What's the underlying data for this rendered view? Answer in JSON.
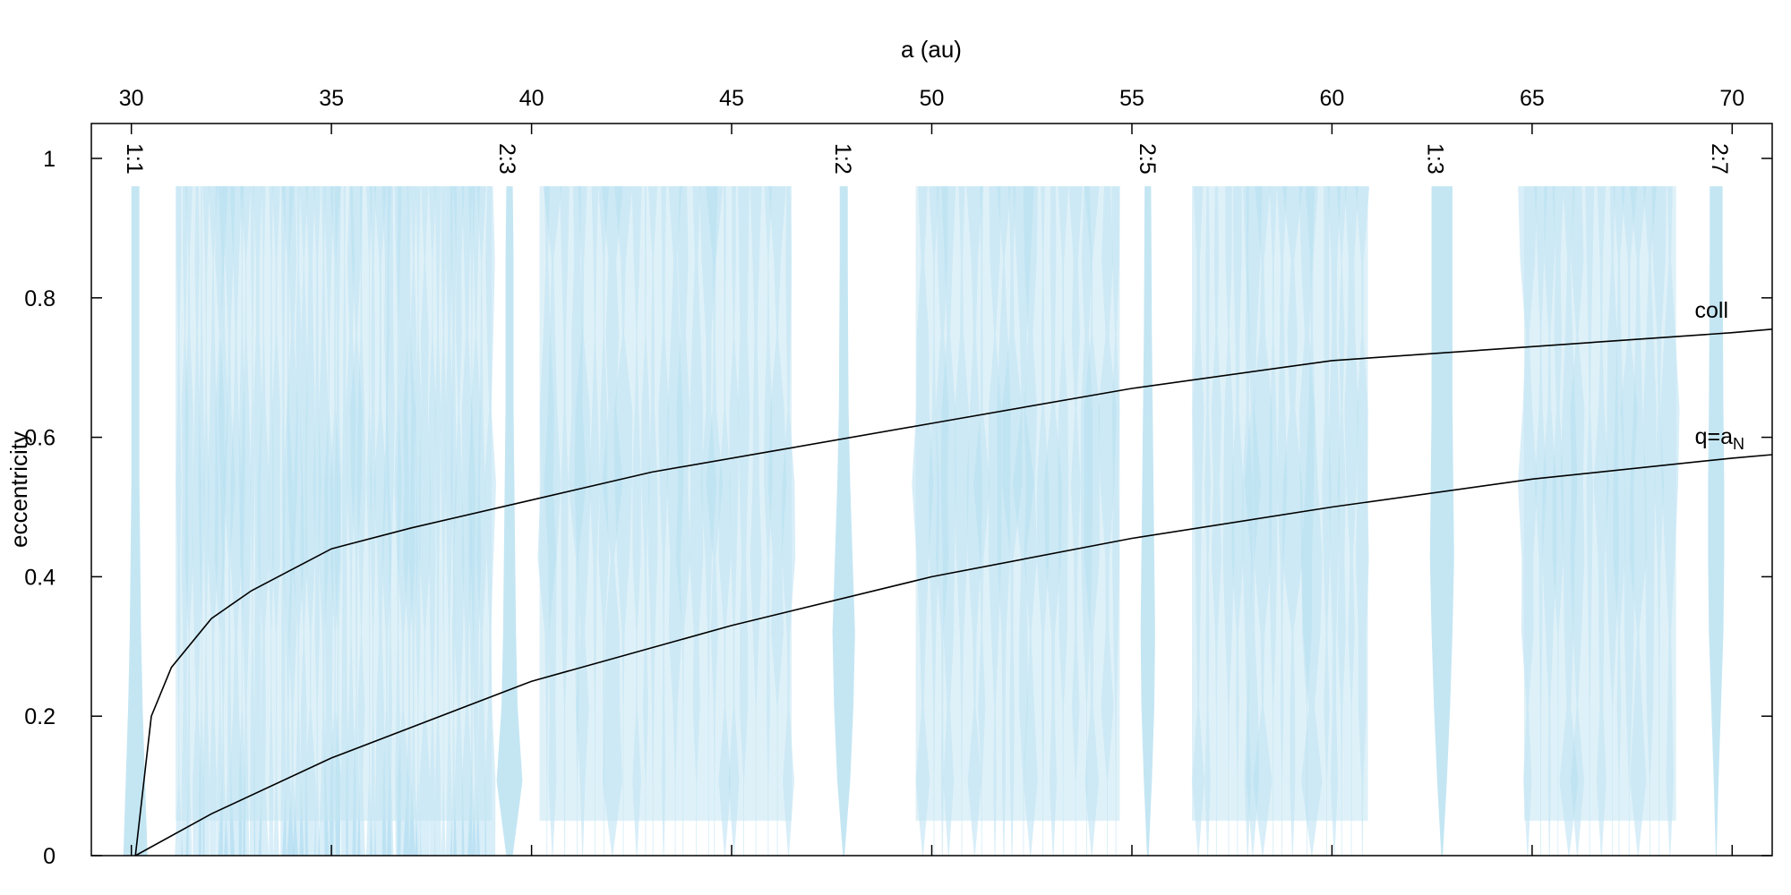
{
  "chart_data": {
    "type": "area",
    "title": "",
    "xlabel": "a (au)",
    "ylabel": "eccentricity",
    "xlim": [
      29.0,
      71.0
    ],
    "ylim": [
      0,
      1.05
    ],
    "x_axis_position": "top",
    "grid": false,
    "x_ticks": [
      "30",
      "35",
      "40",
      "45",
      "50",
      "55",
      "60",
      "65",
      "70"
    ],
    "x_tick_values": [
      30,
      35,
      40,
      45,
      50,
      55,
      60,
      65,
      70
    ],
    "y_ticks": [
      "0",
      "0.2",
      "0.4",
      "0.6",
      "0.8",
      "1"
    ],
    "y_tick_values": [
      0,
      0.2,
      0.4,
      0.6,
      0.8,
      1.0
    ],
    "fill_color": "#c4e6f3",
    "overlap_color": "#86cbe9",
    "labeled_resonances": [
      {
        "label": "1:1",
        "a": 30.1
      },
      {
        "label": "2:3",
        "a": 39.4
      },
      {
        "label": "1:2",
        "a": 47.8
      },
      {
        "label": "2:5",
        "a": 55.4
      },
      {
        "label": "1:3",
        "a": 62.6
      },
      {
        "label": "2:7",
        "a": 69.7
      }
    ],
    "resonance_widths": [
      {
        "a": 30.1,
        "w": [
          1.5,
          1.2,
          0.9,
          0.7,
          0.6,
          0.5,
          0.5,
          0.5,
          0.5,
          0.5
        ]
      },
      {
        "a": 39.45,
        "w": [
          0.4,
          1.6,
          1.0,
          0.8,
          0.7,
          0.6,
          0.5,
          0.5,
          0.5,
          0.4
        ]
      },
      {
        "a": 47.8,
        "w": [
          0.1,
          0.8,
          1.2,
          1.4,
          1.1,
          0.8,
          0.6,
          0.55,
          0.5,
          0.5
        ]
      },
      {
        "a": 55.4,
        "w": [
          0.1,
          0.5,
          0.8,
          0.9,
          0.8,
          0.7,
          0.6,
          0.5,
          0.45,
          0.4
        ]
      },
      {
        "a": 62.75,
        "w": [
          0.1,
          0.6,
          1.0,
          1.3,
          1.5,
          1.4,
          1.3,
          1.3,
          1.3,
          1.3
        ]
      },
      {
        "a": 69.6,
        "w": [
          0.05,
          0.3,
          0.6,
          0.9,
          1.0,
          1.0,
          0.9,
          0.85,
          0.8,
          0.8
        ]
      }
    ],
    "dense_region_ranges": [
      [
        31.1,
        39.0
      ],
      [
        40.2,
        46.5
      ],
      [
        49.6,
        54.7
      ],
      [
        56.5,
        60.9
      ],
      [
        64.8,
        68.6
      ]
    ],
    "band_top_e": 0.96,
    "series": [
      {
        "name": "coll",
        "x": [
          30.1,
          30.5,
          31,
          32,
          33,
          34,
          35,
          37,
          40,
          43,
          46,
          50,
          55,
          60,
          65,
          70,
          71
        ],
        "y": [
          0,
          0.2,
          0.27,
          0.34,
          0.38,
          0.41,
          0.44,
          0.47,
          0.51,
          0.55,
          0.58,
          0.62,
          0.67,
          0.71,
          0.73,
          0.75,
          0.755
        ]
      },
      {
        "name": "q=a_N",
        "x": [
          30.1,
          32,
          35,
          40,
          45,
          50,
          55,
          60,
          65,
          70,
          71
        ],
        "y": [
          0,
          0.06,
          0.14,
          0.25,
          0.33,
          0.4,
          0.455,
          0.5,
          0.54,
          0.57,
          0.575
        ]
      }
    ],
    "curve_labels": [
      {
        "text": "coll",
        "series": "coll"
      },
      {
        "text": "q=a",
        "sub": "N",
        "series": "q=a_N"
      }
    ]
  }
}
